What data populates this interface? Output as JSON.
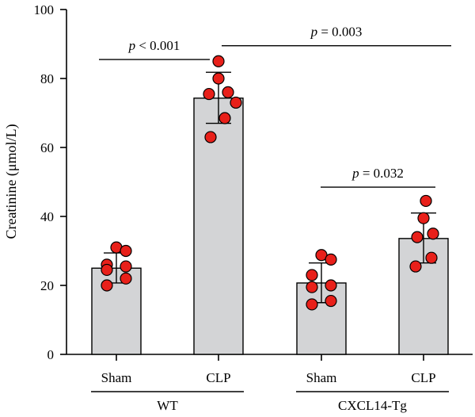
{
  "chart_data": {
    "type": "bar",
    "ylabel": "Creatinine (μmol/L)",
    "ylim": [
      0,
      100
    ],
    "yticks": [
      0,
      20,
      40,
      60,
      80,
      100
    ],
    "grid": false,
    "categories": [
      "Sham",
      "CLP",
      "Sham",
      "CLP"
    ],
    "groups": [
      {
        "label": "WT",
        "categories": [
          0,
          1
        ]
      },
      {
        "label": "CXCL14-Tg",
        "categories": [
          2,
          3
        ]
      }
    ],
    "bars": [
      {
        "category": "Sham",
        "group": "WT",
        "mean": 25.0,
        "error": [
          20.7,
          29.4
        ],
        "points": [
          31.0,
          30.0,
          26.0,
          25.5,
          24.5,
          22.0,
          20.0
        ]
      },
      {
        "category": "CLP",
        "group": "WT",
        "mean": 74.3,
        "error": [
          67.0,
          81.8
        ],
        "points": [
          85.0,
          80.0,
          76.0,
          75.5,
          73.0,
          68.5,
          63.0
        ]
      },
      {
        "category": "Sham",
        "group": "CXCL14-Tg",
        "mean": 20.7,
        "error": [
          15.0,
          26.5
        ],
        "points": [
          28.8,
          27.5,
          23.0,
          20.0,
          19.5,
          15.5,
          14.5
        ]
      },
      {
        "category": "CLP",
        "group": "CXCL14-Tg",
        "mean": 33.6,
        "error": [
          26.5,
          41.0
        ],
        "points": [
          44.5,
          39.5,
          35.0,
          34.0,
          28.0,
          25.5
        ]
      }
    ],
    "annotations": [
      {
        "type": "significance",
        "from": 0,
        "to": 1,
        "y": 85.5,
        "label_prefix": "p",
        "label_rest": " < 0.001"
      },
      {
        "type": "significance",
        "from": 1,
        "to": 3,
        "y": 89.5,
        "label_prefix": "p",
        "label_rest": " = 0.003"
      },
      {
        "type": "significance",
        "from": 2,
        "to": 3,
        "y": 48.5,
        "label_prefix": "p",
        "label_rest": " = 0.032"
      }
    ],
    "colors": {
      "bar_fill": "#d3d4d6",
      "point_fill": "#e8201a",
      "axis": "#000000"
    }
  }
}
